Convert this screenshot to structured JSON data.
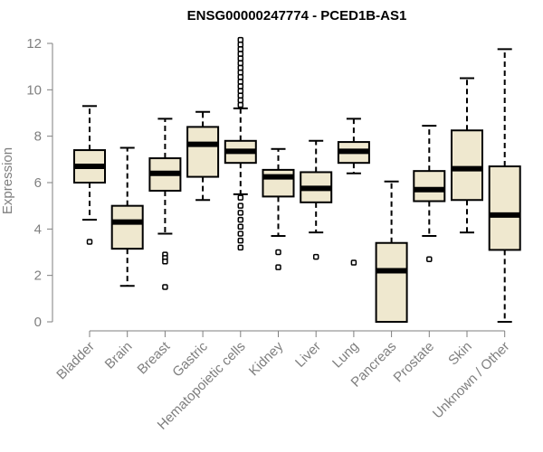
{
  "chart_data": {
    "type": "boxplot",
    "title": "ENSG00000247774 - PCED1B-AS1",
    "ylabel": "Expression",
    "xlabel": "",
    "ylim": [
      0,
      12
    ],
    "yticks": [
      0,
      2,
      4,
      6,
      8,
      10,
      12
    ],
    "grid": false,
    "colors": {
      "box_fill": "#efe8cf",
      "axis": "#7f7f7f"
    },
    "categories": [
      "Bladder",
      "Brain",
      "Breast",
      "Gastric",
      "Hematopoietic cells",
      "Kidney",
      "Liver",
      "Lung",
      "Pancreas",
      "Prostate",
      "Skin",
      "Unknown / Other"
    ],
    "boxes": [
      {
        "q1": 6.0,
        "median": 6.7,
        "q3": 7.4,
        "whisker_low": 4.4,
        "whisker_high": 9.3,
        "outliers": [
          3.45
        ]
      },
      {
        "q1": 3.15,
        "median": 4.3,
        "q3": 5.0,
        "whisker_low": 1.55,
        "whisker_high": 7.5,
        "outliers": []
      },
      {
        "q1": 5.65,
        "median": 6.4,
        "q3": 7.05,
        "whisker_low": 3.8,
        "whisker_high": 8.75,
        "outliers": [
          2.9,
          2.75,
          2.6,
          1.5
        ]
      },
      {
        "q1": 6.25,
        "median": 7.65,
        "q3": 8.4,
        "whisker_low": 5.25,
        "whisker_high": 9.05,
        "outliers": []
      },
      {
        "q1": 6.85,
        "median": 7.35,
        "q3": 7.8,
        "whisker_low": 5.5,
        "whisker_high": 9.2,
        "outliers": [
          9.35,
          9.55,
          9.75,
          9.95,
          10.15,
          10.35,
          10.55,
          10.75,
          10.95,
          11.15,
          11.35,
          11.55,
          11.75,
          11.95,
          12.15,
          5.35,
          5.0,
          4.7,
          4.4,
          4.1,
          3.8,
          3.5,
          3.2
        ]
      },
      {
        "q1": 5.4,
        "median": 6.25,
        "q3": 6.55,
        "whisker_low": 3.7,
        "whisker_high": 7.45,
        "outliers": [
          3.0,
          2.35
        ]
      },
      {
        "q1": 5.15,
        "median": 5.75,
        "q3": 6.45,
        "whisker_low": 3.85,
        "whisker_high": 7.8,
        "outliers": [
          2.8
        ]
      },
      {
        "q1": 6.85,
        "median": 7.35,
        "q3": 7.75,
        "whisker_low": 6.4,
        "whisker_high": 8.75,
        "outliers": [
          2.55
        ]
      },
      {
        "q1": 0.0,
        "median": 2.2,
        "q3": 3.4,
        "whisker_low": 0.0,
        "whisker_high": 6.05,
        "outliers": []
      },
      {
        "q1": 5.2,
        "median": 5.7,
        "q3": 6.5,
        "whisker_low": 3.7,
        "whisker_high": 8.45,
        "outliers": [
          2.7
        ]
      },
      {
        "q1": 5.25,
        "median": 6.6,
        "q3": 8.25,
        "whisker_low": 3.85,
        "whisker_high": 10.5,
        "outliers": []
      },
      {
        "q1": 3.1,
        "median": 4.6,
        "q3": 6.7,
        "whisker_low": 0.0,
        "whisker_high": 11.75,
        "outliers": []
      }
    ]
  }
}
